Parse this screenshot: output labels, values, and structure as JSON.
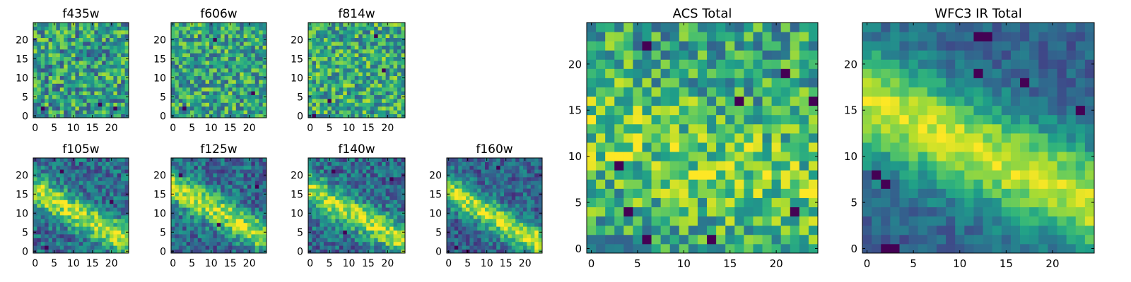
{
  "figure": {
    "colormap": "viridis",
    "background": "#ffffff"
  },
  "chart_data": [
    {
      "type": "heatmap",
      "title": "f435w",
      "size": 24,
      "xticks": [
        "0",
        "5",
        "10",
        "15",
        "20"
      ],
      "yticks": [
        "0",
        "5",
        "10",
        "15",
        "20"
      ],
      "field": {
        "base": 0.55,
        "noise": 0.32,
        "seed": 11,
        "hot": [],
        "cold": [
          [
            2,
            2
          ],
          [
            17,
            3
          ],
          [
            21,
            2
          ]
        ]
      }
    },
    {
      "type": "heatmap",
      "title": "f606w",
      "size": 24,
      "xticks": [
        "0",
        "5",
        "10",
        "15",
        "20"
      ],
      "yticks": [
        "0",
        "5",
        "10",
        "15",
        "20"
      ],
      "field": {
        "base": 0.58,
        "noise": 0.3,
        "seed": 23,
        "hot": [
          [
            9,
            11,
            0.2
          ],
          [
            14,
            8,
            0.15
          ]
        ],
        "cold": [
          [
            3,
            2
          ],
          [
            21,
            6
          ],
          [
            11,
            20
          ]
        ]
      }
    },
    {
      "type": "heatmap",
      "title": "f814w",
      "size": 24,
      "xticks": [
        "0",
        "5",
        "10",
        "15",
        "20"
      ],
      "yticks": [
        "0",
        "5",
        "10",
        "15",
        "20"
      ],
      "field": {
        "base": 0.6,
        "noise": 0.3,
        "seed": 37,
        "hot": [
          [
            10,
            14,
            0.12
          ]
        ],
        "cold": [
          [
            1,
            0
          ],
          [
            5,
            4
          ],
          [
            19,
            12
          ],
          [
            17,
            21
          ]
        ]
      }
    },
    {
      "type": "heatmap",
      "title": "f105w",
      "size": 24,
      "xticks": [
        "0",
        "5",
        "10",
        "15",
        "20"
      ],
      "yticks": [
        "0",
        "5",
        "10",
        "15",
        "20"
      ],
      "field": {
        "base": 0.35,
        "noise": 0.22,
        "seed": 41,
        "band": [
          16,
          -0.55,
          3.0,
          0.55
        ],
        "hot": [],
        "cold": [
          [
            7,
            21
          ],
          [
            20,
            13
          ],
          [
            3,
            1
          ]
        ]
      }
    },
    {
      "type": "heatmap",
      "title": "f125w",
      "size": 24,
      "xticks": [
        "0",
        "5",
        "10",
        "15",
        "20"
      ],
      "yticks": [
        "0",
        "5",
        "10",
        "15",
        "20"
      ],
      "field": {
        "base": 0.35,
        "noise": 0.22,
        "seed": 53,
        "band": [
          17,
          -0.55,
          3.0,
          0.55
        ],
        "hot": [],
        "cold": [
          [
            2,
            20
          ],
          [
            12,
            7
          ],
          [
            22,
            17
          ]
        ]
      }
    },
    {
      "type": "heatmap",
      "title": "f140w",
      "size": 24,
      "xticks": [
        "0",
        "5",
        "10",
        "15",
        "20"
      ],
      "yticks": [
        "0",
        "5",
        "10",
        "15",
        "20"
      ],
      "field": {
        "base": 0.35,
        "noise": 0.22,
        "seed": 67,
        "band": [
          16,
          -0.55,
          3.0,
          0.55
        ],
        "hot": [],
        "cold": [
          [
            6,
            21
          ],
          [
            9,
            5
          ],
          [
            21,
            19
          ]
        ]
      }
    },
    {
      "type": "heatmap",
      "title": "f160w",
      "size": 24,
      "xticks": [
        "0",
        "5",
        "10",
        "15",
        "20"
      ],
      "yticks": [
        "0",
        "5",
        "10",
        "15",
        "20"
      ],
      "field": {
        "base": 0.32,
        "noise": 0.2,
        "seed": 79,
        "band": [
          16,
          -0.6,
          2.8,
          0.6
        ],
        "hot": [
          [
            23,
            5,
            0.3
          ]
        ],
        "cold": [
          [
            2,
            1
          ],
          [
            5,
            0
          ],
          [
            13,
            22
          ]
        ]
      }
    },
    {
      "type": "heatmap",
      "title": "ACS Total",
      "size": 24,
      "xticks": [
        "0",
        "5",
        "10",
        "15",
        "20"
      ],
      "yticks": [
        "0",
        "5",
        "10",
        "15",
        "20"
      ],
      "field": {
        "base": 0.58,
        "noise": 0.28,
        "seed": 97,
        "band": [
          13,
          -0.3,
          4.5,
          0.18
        ],
        "hot": [
          [
            22,
            8,
            0.35
          ],
          [
            1,
            17,
            0.25
          ]
        ],
        "cold": [
          [
            6,
            22
          ],
          [
            21,
            19
          ],
          [
            24,
            16
          ],
          [
            16,
            16
          ],
          [
            3,
            9
          ],
          [
            4,
            4
          ],
          [
            13,
            1
          ],
          [
            22,
            4
          ],
          [
            6,
            1
          ]
        ]
      }
    },
    {
      "type": "heatmap",
      "title": "WFC3 IR Total",
      "size": 24,
      "xticks": [
        "0",
        "5",
        "10",
        "15",
        "20"
      ],
      "yticks": [
        "0",
        "5",
        "10",
        "15",
        "20"
      ],
      "field": {
        "base": 0.32,
        "noise": 0.12,
        "seed": 131,
        "band": [
          16,
          -0.45,
          4.0,
          0.6
        ],
        "hot": [],
        "cold": [
          [
            12,
            23
          ],
          [
            13,
            23
          ],
          [
            1,
            8
          ],
          [
            2,
            7
          ],
          [
            2,
            0
          ],
          [
            3,
            0
          ],
          [
            12,
            19
          ],
          [
            17,
            18
          ],
          [
            23,
            15
          ]
        ]
      }
    }
  ]
}
